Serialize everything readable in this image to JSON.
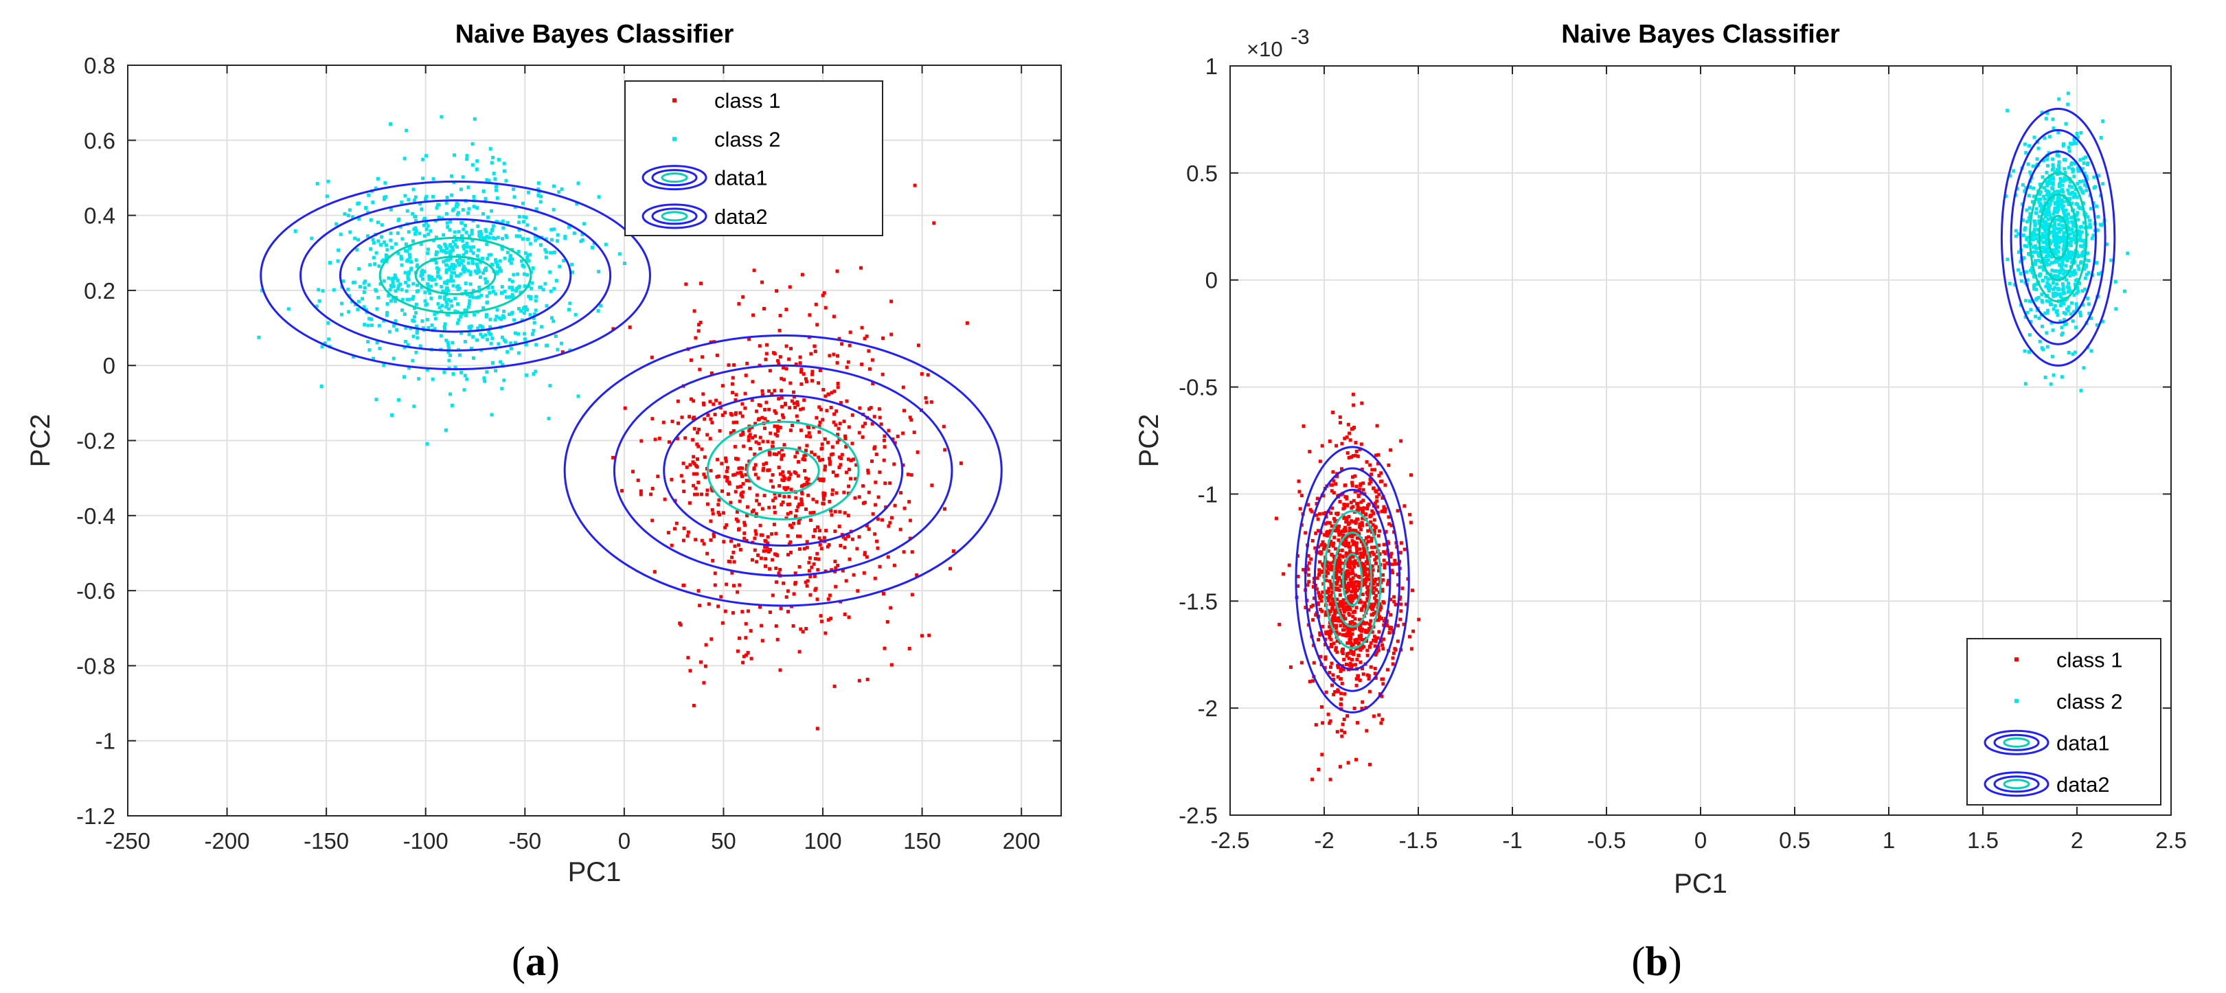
{
  "chart_data": [
    {
      "type": "scatter",
      "panel_label": "a",
      "title": "Naive Bayes Classifier",
      "xlabel": "PC1",
      "ylabel": "PC2",
      "xlim": [
        -250,
        220
      ],
      "ylim": [
        -1.2,
        0.8
      ],
      "xticks": [
        -250,
        -200,
        -150,
        -100,
        -50,
        0,
        50,
        100,
        150,
        200
      ],
      "xtick_labels": [
        "-250",
        "-200",
        "-150",
        "-100",
        "-50",
        "0",
        "50",
        "100",
        "150",
        "200"
      ],
      "yticks": [
        -1.2,
        -1,
        -0.8,
        -0.6,
        -0.4,
        -0.2,
        0,
        0.2,
        0.4,
        0.6,
        0.8
      ],
      "ytick_labels": [
        "-1.2",
        "-1",
        "-0.8",
        "-0.6",
        "-0.4",
        "-0.2",
        "0",
        "0.2",
        "0.4",
        "0.6",
        "0.8"
      ],
      "exponent_label": "",
      "grid": true,
      "legend_position": "top-right",
      "legend": [
        "class 1",
        "class 2",
        "data1",
        "data2"
      ],
      "series": [
        {
          "name": "class 1",
          "color": "#ff0000",
          "mean": [
            80,
            -0.28
          ],
          "std": [
            32,
            0.22
          ],
          "n": 900
        },
        {
          "name": "class 2",
          "color": "#00e5ee",
          "mean": [
            -85,
            0.25
          ],
          "std": [
            30,
            0.14
          ],
          "n": 900
        }
      ],
      "contours": [
        {
          "name": "data1",
          "center": [
            80,
            -0.28
          ],
          "radii": [
            [
              110,
              0.36
            ],
            [
              85,
              0.28
            ],
            [
              60,
              0.2
            ],
            [
              38,
              0.13
            ],
            [
              18,
              0.06
            ]
          ]
        },
        {
          "name": "data2",
          "center": [
            -85,
            0.24
          ],
          "radii": [
            [
              98,
              0.25
            ],
            [
              78,
              0.2
            ],
            [
              58,
              0.15
            ],
            [
              38,
              0.1
            ],
            [
              20,
              0.05
            ]
          ]
        }
      ]
    },
    {
      "type": "scatter",
      "panel_label": "b",
      "title": "Naive Bayes Classifier",
      "xlabel": "PC1",
      "ylabel": "PC2",
      "xlim": [
        -2.5,
        2.5
      ],
      "ylim": [
        -2.5,
        1.0
      ],
      "xticks": [
        -2.5,
        -2,
        -1.5,
        -1,
        -0.5,
        0,
        0.5,
        1,
        1.5,
        2,
        2.5
      ],
      "xtick_labels": [
        "-2.5",
        "-2",
        "-1.5",
        "-1",
        "-0.5",
        "0",
        "0.5",
        "1",
        "1.5",
        "2",
        "2.5"
      ],
      "yticks": [
        -2.5,
        -2,
        -1.5,
        -1,
        -0.5,
        0,
        0.5,
        1
      ],
      "ytick_labels": [
        "-2.5",
        "-2",
        "-1.5",
        "-1",
        "-0.5",
        "0",
        "0.5",
        "1"
      ],
      "exponent_label": "×10",
      "exponent_power": "-3",
      "grid": true,
      "legend_position": "bottom-right",
      "legend": [
        "class 1",
        "class 2",
        "data1",
        "data2"
      ],
      "series": [
        {
          "name": "class 1",
          "color": "#ff0000",
          "mean": [
            -1.85,
            -1.4
          ],
          "std": [
            0.12,
            0.28
          ],
          "n": 1200
        },
        {
          "name": "class 2",
          "color": "#00e5ee",
          "mean": [
            1.9,
            0.2
          ],
          "std": [
            0.1,
            0.24
          ],
          "n": 900
        }
      ],
      "contours": [
        {
          "name": "data1",
          "center": [
            -1.85,
            -1.4
          ],
          "radii": [
            [
              0.3,
              0.62
            ],
            [
              0.25,
              0.52
            ],
            [
              0.2,
              0.42
            ],
            [
              0.15,
              0.32
            ],
            [
              0.1,
              0.22
            ],
            [
              0.05,
              0.12
            ]
          ]
        },
        {
          "name": "data2",
          "center": [
            1.9,
            0.2
          ],
          "radii": [
            [
              0.3,
              0.6
            ],
            [
              0.25,
              0.5
            ],
            [
              0.2,
              0.4
            ],
            [
              0.15,
              0.3
            ],
            [
              0.1,
              0.2
            ],
            [
              0.05,
              0.1
            ]
          ]
        }
      ]
    }
  ],
  "colors": {
    "class1": "#ff0000",
    "class2": "#00e5ee",
    "contour_outer": "#2020ff",
    "contour_inner": "#00d2b4",
    "grid": "#e0e0e0",
    "axis": "#262626"
  }
}
